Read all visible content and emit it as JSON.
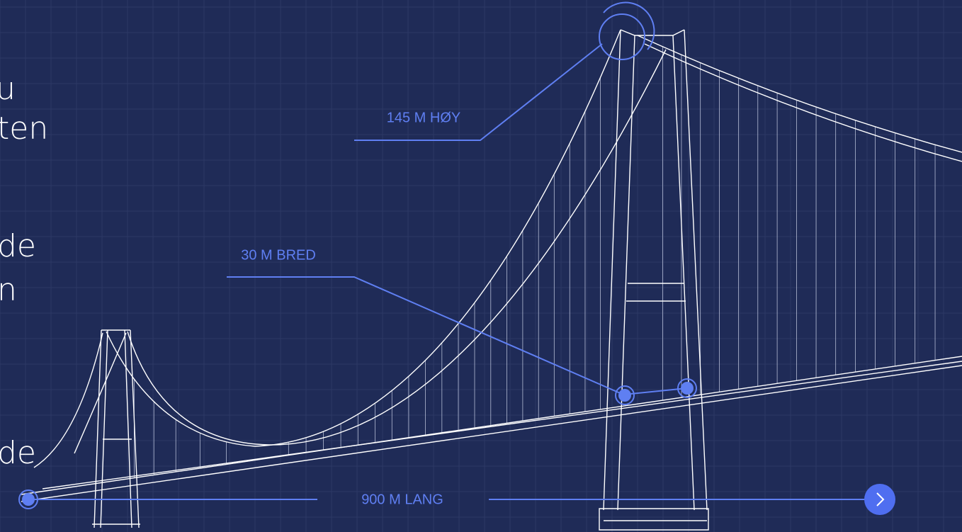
{
  "text_fragments": [
    "u",
    "ten",
    "de",
    "n",
    "de"
  ],
  "labels": {
    "height": "145 M HØY",
    "width": "30 M BRED",
    "length": "900 M LANG"
  }
}
